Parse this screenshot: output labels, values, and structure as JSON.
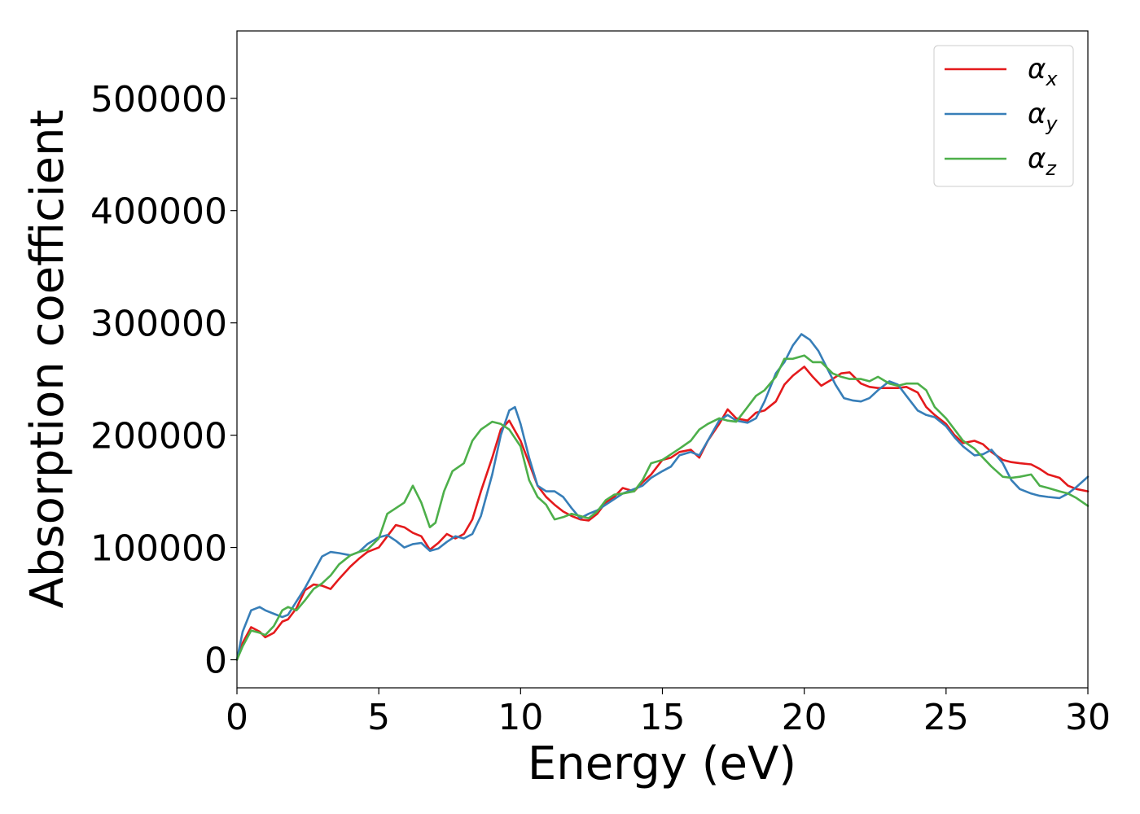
{
  "chart_data": {
    "type": "line",
    "xlabel": "Energy (eV)",
    "ylabel": "Absorption coefficient",
    "xlim": [
      0,
      30
    ],
    "ylim": [
      -25000,
      560000
    ],
    "xticks": [
      0,
      5,
      10,
      15,
      20,
      25,
      30
    ],
    "xtick_labels": [
      "0",
      "5",
      "10",
      "15",
      "20",
      "25",
      "30"
    ],
    "yticks": [
      0,
      100000,
      200000,
      300000,
      400000,
      500000
    ],
    "ytick_labels": [
      "0",
      "100000",
      "200000",
      "300000",
      "400000",
      "500000"
    ],
    "grid": false,
    "legend_position": "top-right",
    "series": [
      {
        "name": "αx",
        "base": "α",
        "sub": "x",
        "color": "#e41a1c",
        "x": [
          0,
          0.2,
          0.5,
          0.8,
          1.0,
          1.3,
          1.6,
          1.8,
          2.1,
          2.4,
          2.7,
          3.0,
          3.3,
          3.6,
          4.0,
          4.3,
          4.6,
          5.0,
          5.3,
          5.6,
          5.9,
          6.2,
          6.5,
          6.8,
          7.1,
          7.4,
          7.7,
          8.0,
          8.3,
          8.6,
          9.0,
          9.3,
          9.6,
          10.0,
          10.3,
          10.6,
          10.9,
          11.2,
          11.5,
          11.8,
          12.1,
          12.4,
          12.7,
          13.0,
          13.3,
          13.6,
          14.0,
          14.3,
          14.6,
          15.0,
          15.3,
          15.6,
          16.0,
          16.3,
          16.6,
          17.0,
          17.3,
          17.6,
          18.0,
          18.3,
          18.6,
          19.0,
          19.3,
          19.6,
          20.0,
          20.3,
          20.6,
          21.0,
          21.3,
          21.6,
          22.0,
          22.3,
          22.6,
          23.0,
          23.3,
          23.6,
          24.0,
          24.3,
          24.6,
          25.0,
          25.3,
          25.6,
          26.0,
          26.3,
          26.6,
          27.0,
          27.3,
          27.6,
          28.0,
          28.3,
          28.6,
          29.0,
          29.3,
          29.6,
          30.0
        ],
        "y": [
          0,
          15000,
          29000,
          25000,
          20000,
          24000,
          34000,
          36000,
          46000,
          62000,
          67000,
          66000,
          63000,
          72000,
          83000,
          90000,
          96000,
          100000,
          110000,
          120000,
          118000,
          113000,
          110000,
          98000,
          104000,
          112000,
          108000,
          112000,
          125000,
          150000,
          180000,
          205000,
          213000,
          195000,
          175000,
          155000,
          145000,
          138000,
          132000,
          128000,
          125000,
          124000,
          130000,
          140000,
          145000,
          153000,
          150000,
          158000,
          165000,
          178000,
          180000,
          185000,
          187000,
          180000,
          195000,
          210000,
          223000,
          215000,
          213000,
          220000,
          222000,
          230000,
          245000,
          253000,
          261000,
          252000,
          244000,
          250000,
          255000,
          256000,
          246000,
          243000,
          242000,
          242000,
          242000,
          243000,
          238000,
          225000,
          218000,
          210000,
          200000,
          193000,
          195000,
          192000,
          185000,
          178000,
          176000,
          175000,
          174000,
          170000,
          165000,
          162000,
          155000,
          152000,
          150000
        ]
      },
      {
        "name": "αy",
        "base": "α",
        "sub": "y",
        "color": "#377eb8",
        "x": [
          0,
          0.2,
          0.5,
          0.8,
          1.0,
          1.3,
          1.6,
          1.8,
          2.1,
          2.4,
          2.7,
          3.0,
          3.3,
          3.6,
          4.0,
          4.3,
          4.6,
          5.0,
          5.3,
          5.6,
          5.9,
          6.2,
          6.5,
          6.8,
          7.1,
          7.4,
          7.7,
          8.0,
          8.3,
          8.6,
          9.0,
          9.3,
          9.6,
          9.8,
          10.0,
          10.3,
          10.6,
          10.9,
          11.2,
          11.5,
          11.8,
          12.1,
          12.4,
          12.7,
          13.0,
          13.3,
          13.6,
          14.0,
          14.3,
          14.6,
          15.0,
          15.3,
          15.6,
          16.0,
          16.3,
          16.6,
          17.0,
          17.3,
          17.6,
          18.0,
          18.3,
          18.6,
          19.0,
          19.3,
          19.6,
          19.9,
          20.2,
          20.5,
          20.8,
          21.1,
          21.4,
          21.7,
          22.0,
          22.3,
          22.6,
          23.0,
          23.3,
          23.6,
          24.0,
          24.3,
          24.6,
          25.0,
          25.3,
          25.6,
          26.0,
          26.3,
          26.6,
          27.0,
          27.3,
          27.6,
          28.0,
          28.3,
          28.6,
          29.0,
          29.3,
          29.6,
          30.0
        ],
        "y": [
          0,
          25000,
          44000,
          47000,
          44000,
          41000,
          38000,
          40000,
          52000,
          64000,
          78000,
          92000,
          96000,
          95000,
          93000,
          96000,
          103000,
          109000,
          111000,
          106000,
          100000,
          103000,
          104000,
          97000,
          99000,
          105000,
          110000,
          108000,
          112000,
          128000,
          165000,
          200000,
          222000,
          225000,
          210000,
          180000,
          155000,
          150000,
          150000,
          145000,
          135000,
          126000,
          130000,
          133000,
          138000,
          143000,
          148000,
          152000,
          155000,
          162000,
          168000,
          172000,
          182000,
          185000,
          182000,
          195000,
          213000,
          218000,
          213000,
          211000,
          215000,
          230000,
          255000,
          265000,
          280000,
          290000,
          285000,
          275000,
          260000,
          245000,
          233000,
          231000,
          230000,
          233000,
          240000,
          248000,
          245000,
          235000,
          222000,
          218000,
          216000,
          208000,
          198000,
          190000,
          182000,
          183000,
          187000,
          175000,
          160000,
          152000,
          148000,
          146000,
          145000,
          144000,
          148000,
          154000,
          163000
        ]
      },
      {
        "name": "αz",
        "base": "α",
        "sub": "z",
        "color": "#4daf4a",
        "x": [
          0,
          0.2,
          0.5,
          0.8,
          1.0,
          1.3,
          1.6,
          1.8,
          2.1,
          2.4,
          2.7,
          3.0,
          3.3,
          3.6,
          4.0,
          4.3,
          4.6,
          5.0,
          5.3,
          5.6,
          5.9,
          6.2,
          6.5,
          6.8,
          7.0,
          7.3,
          7.6,
          8.0,
          8.3,
          8.6,
          9.0,
          9.3,
          9.6,
          10.0,
          10.3,
          10.6,
          10.9,
          11.2,
          11.5,
          11.8,
          12.1,
          12.4,
          12.7,
          13.0,
          13.3,
          13.6,
          14.0,
          14.3,
          14.6,
          15.0,
          15.3,
          15.6,
          16.0,
          16.3,
          16.6,
          17.0,
          17.3,
          17.6,
          18.0,
          18.3,
          18.6,
          19.0,
          19.3,
          19.6,
          20.0,
          20.3,
          20.6,
          21.0,
          21.3,
          21.6,
          22.0,
          22.3,
          22.6,
          23.0,
          23.3,
          23.6,
          24.0,
          24.3,
          24.6,
          25.0,
          25.3,
          25.6,
          26.0,
          26.3,
          26.6,
          27.0,
          27.3,
          27.6,
          28.0,
          28.3,
          28.6,
          29.0,
          29.3,
          29.6,
          30.0
        ],
        "y": [
          0,
          12000,
          26000,
          24000,
          22000,
          30000,
          44000,
          47000,
          44000,
          53000,
          63000,
          68000,
          75000,
          85000,
          93000,
          96000,
          98000,
          108000,
          130000,
          135000,
          140000,
          155000,
          140000,
          118000,
          122000,
          150000,
          168000,
          175000,
          195000,
          205000,
          212000,
          210000,
          205000,
          190000,
          160000,
          145000,
          138000,
          125000,
          127000,
          130000,
          128000,
          126000,
          132000,
          142000,
          147000,
          148000,
          150000,
          160000,
          175000,
          178000,
          183000,
          188000,
          195000,
          205000,
          210000,
          215000,
          213000,
          212000,
          225000,
          235000,
          240000,
          252000,
          268000,
          268000,
          271000,
          265000,
          265000,
          255000,
          252000,
          250000,
          250000,
          248000,
          252000,
          246000,
          244000,
          246000,
          246000,
          240000,
          225000,
          215000,
          205000,
          195000,
          188000,
          180000,
          172000,
          163000,
          162000,
          163000,
          165000,
          155000,
          153000,
          150000,
          148000,
          144000,
          137000
        ]
      }
    ]
  }
}
